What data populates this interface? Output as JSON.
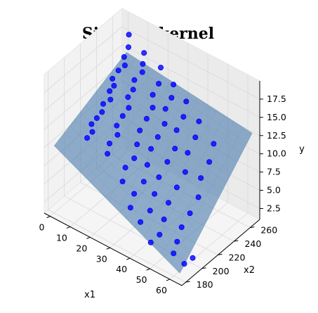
{
  "chart_data": {
    "type": "scatter",
    "title": "Sigmoid kernel",
    "xlabel": "x1",
    "ylabel": "x2",
    "zlabel": "y",
    "xlim": [
      -3,
      66
    ],
    "ylim": [
      175,
      272
    ],
    "zlim": [
      1,
      20
    ],
    "x_ticks": [
      "0",
      "10",
      "20",
      "30",
      "40",
      "50",
      "60"
    ],
    "y_ticks": [
      "180",
      "200",
      "220",
      "240",
      "260"
    ],
    "z_ticks": [
      "2.5",
      "5.0",
      "7.5",
      "10.0",
      "12.5",
      "15.0",
      "17.5"
    ],
    "grid": true,
    "surface": {
      "label": "",
      "color": "#4f7fb0",
      "corners": [
        [
          0,
          180,
          10.2
        ],
        [
          63,
          180,
          1.8
        ],
        [
          63,
          270,
          12.6
        ],
        [
          0,
          270,
          14.6
        ]
      ]
    },
    "series": [
      {
        "marker_color": "#0000ff",
        "points": [
          [
            2,
            268,
            17.5
          ],
          [
            3,
            265,
            16.2
          ],
          [
            2,
            262,
            15.0
          ],
          [
            4,
            258,
            14.5
          ],
          [
            2,
            255,
            13.8
          ],
          [
            1,
            250,
            13.0
          ],
          [
            3,
            247,
            12.6
          ],
          [
            2,
            244,
            12.0
          ],
          [
            4,
            240,
            11.5
          ],
          [
            2,
            236,
            11.0
          ],
          [
            3,
            232,
            10.4
          ],
          [
            2,
            228,
            9.8
          ],
          [
            1,
            224,
            9.2
          ],
          [
            3,
            220,
            8.8
          ],
          [
            2,
            216,
            8.2
          ],
          [
            12,
            262,
            17.0
          ],
          [
            13,
            258,
            16.0
          ],
          [
            14,
            255,
            15.3
          ],
          [
            12,
            250,
            14.4
          ],
          [
            13,
            246,
            13.6
          ],
          [
            12,
            242,
            12.8
          ],
          [
            14,
            238,
            12.0
          ],
          [
            13,
            233,
            11.2
          ],
          [
            12,
            228,
            10.2
          ],
          [
            14,
            224,
            9.6
          ],
          [
            12,
            219,
            8.6
          ],
          [
            13,
            214,
            7.8
          ],
          [
            22,
            258,
            16.8
          ],
          [
            23,
            253,
            15.2
          ],
          [
            22,
            248,
            14.0
          ],
          [
            24,
            243,
            13.0
          ],
          [
            23,
            238,
            11.8
          ],
          [
            22,
            232,
            10.6
          ],
          [
            23,
            226,
            9.4
          ],
          [
            24,
            220,
            8.2
          ],
          [
            22,
            214,
            7.2
          ],
          [
            23,
            208,
            6.0
          ],
          [
            30,
            254,
            16.0
          ],
          [
            31,
            249,
            14.8
          ],
          [
            30,
            244,
            13.6
          ],
          [
            32,
            238,
            12.4
          ],
          [
            31,
            232,
            11.0
          ],
          [
            30,
            226,
            9.8
          ],
          [
            31,
            219,
            8.4
          ],
          [
            32,
            212,
            6.9
          ],
          [
            30,
            205,
            5.6
          ],
          [
            31,
            198,
            4.5
          ],
          [
            38,
            250,
            15.2
          ],
          [
            39,
            244,
            13.8
          ],
          [
            38,
            238,
            12.4
          ],
          [
            40,
            231,
            10.8
          ],
          [
            39,
            224,
            9.5
          ],
          [
            38,
            216,
            8.0
          ],
          [
            39,
            208,
            6.6
          ],
          [
            40,
            200,
            5.2
          ],
          [
            38,
            193,
            4.0
          ],
          [
            46,
            246,
            14.0
          ],
          [
            47,
            239,
            12.6
          ],
          [
            46,
            232,
            11.0
          ],
          [
            48,
            224,
            9.4
          ],
          [
            47,
            216,
            7.9
          ],
          [
            46,
            208,
            6.4
          ],
          [
            47,
            200,
            5.0
          ],
          [
            48,
            192,
            3.8
          ],
          [
            46,
            186,
            3.0
          ],
          [
            55,
            242,
            12.6
          ],
          [
            56,
            234,
            11.0
          ],
          [
            55,
            226,
            9.4
          ],
          [
            57,
            218,
            7.8
          ],
          [
            56,
            210,
            6.2
          ],
          [
            55,
            202,
            4.9
          ],
          [
            56,
            194,
            3.8
          ],
          [
            57,
            187,
            3.0
          ],
          [
            63,
            196,
            2.4
          ],
          [
            62,
            188,
            2.2
          ]
        ]
      }
    ]
  }
}
